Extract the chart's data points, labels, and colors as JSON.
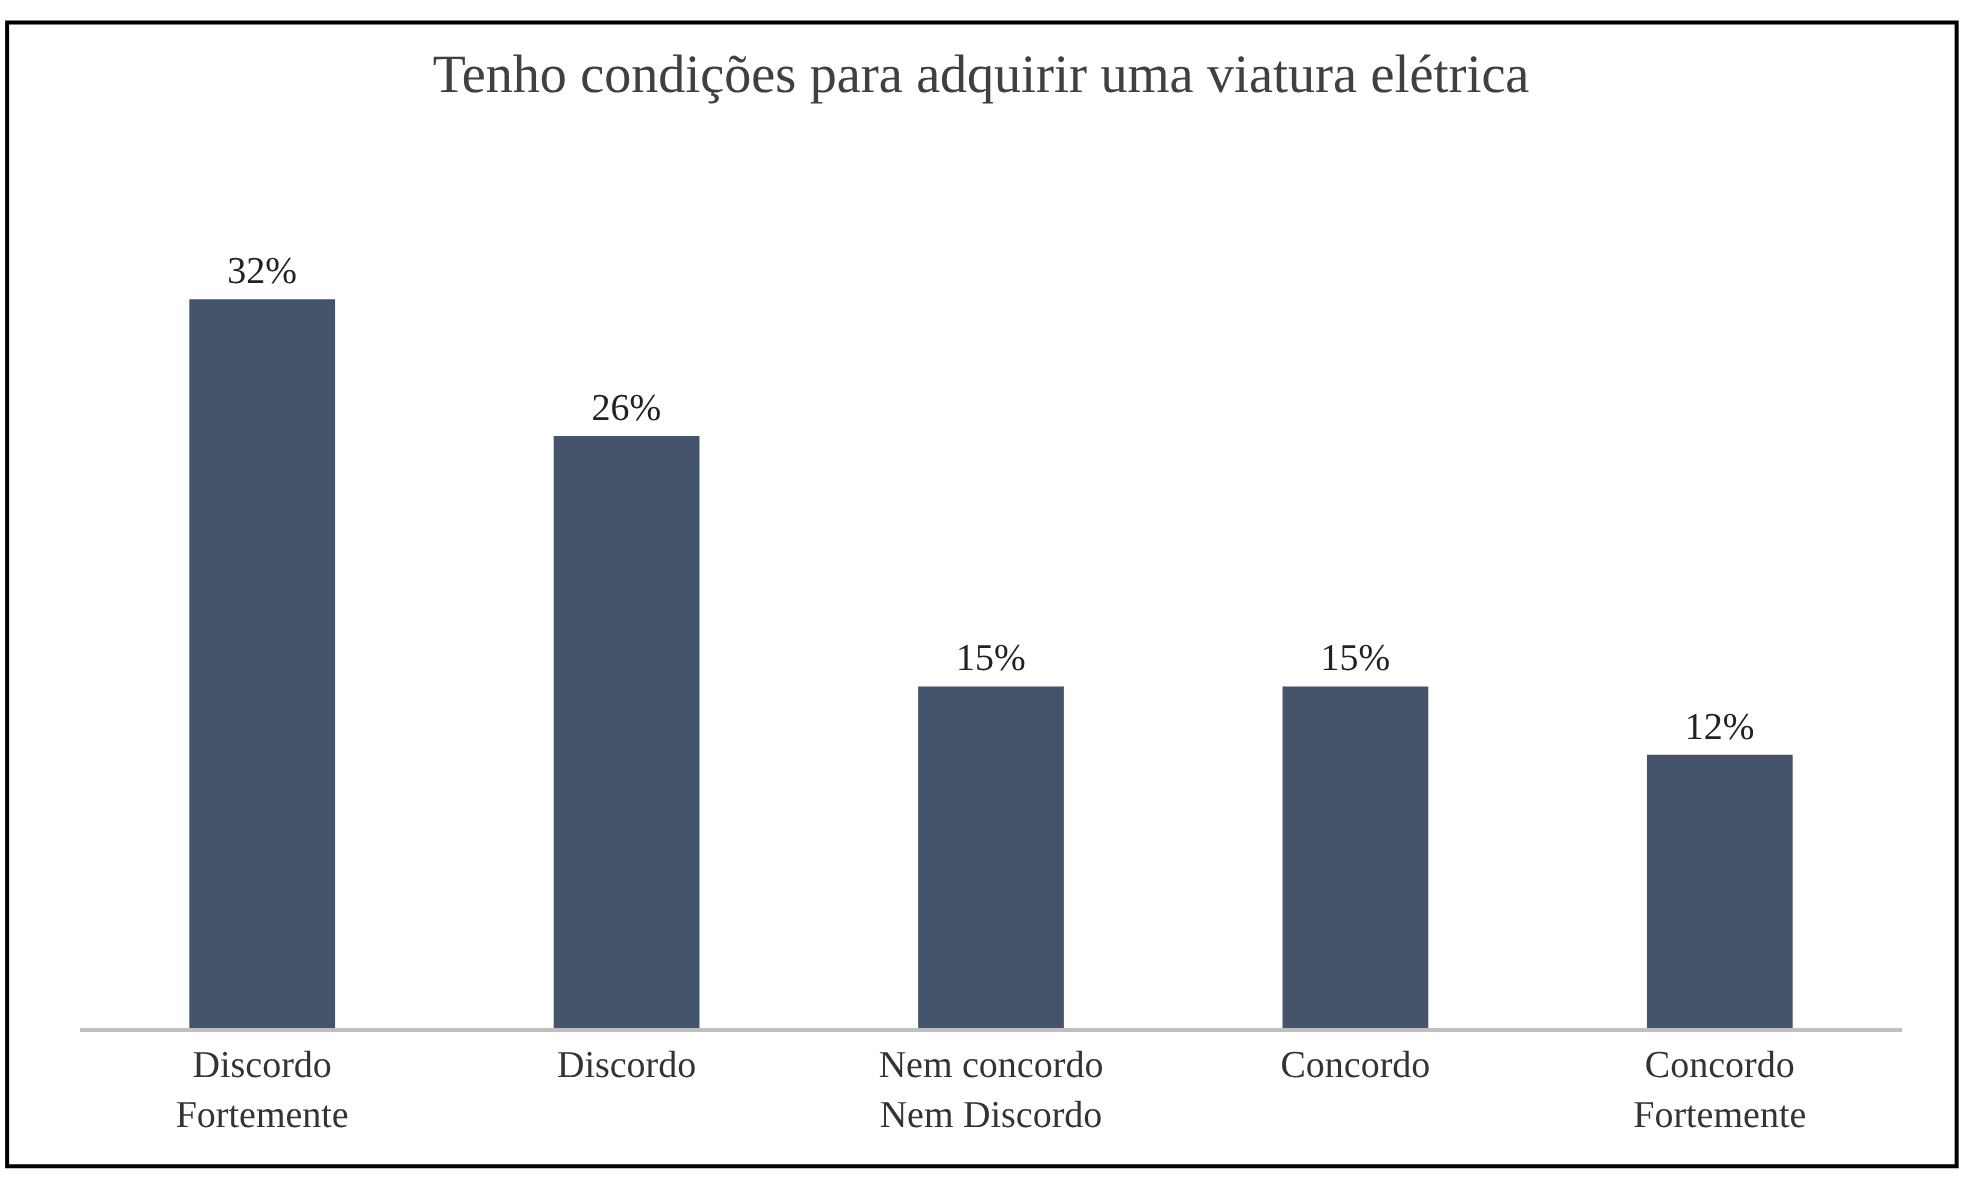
{
  "chart_data": {
    "type": "bar",
    "title": "Tenho condições para adquirir uma viatura elétrica",
    "categories": [
      "Discordo\nFortemente",
      "Discordo",
      "Nem concordo\nNem Discordo",
      "Concordo",
      "Concordo\nFortemente"
    ],
    "values": [
      32,
      26,
      15,
      15,
      12
    ],
    "value_labels": [
      "32%",
      "26%",
      "15%",
      "15%",
      "12%"
    ],
    "color": "#44546a"
  }
}
